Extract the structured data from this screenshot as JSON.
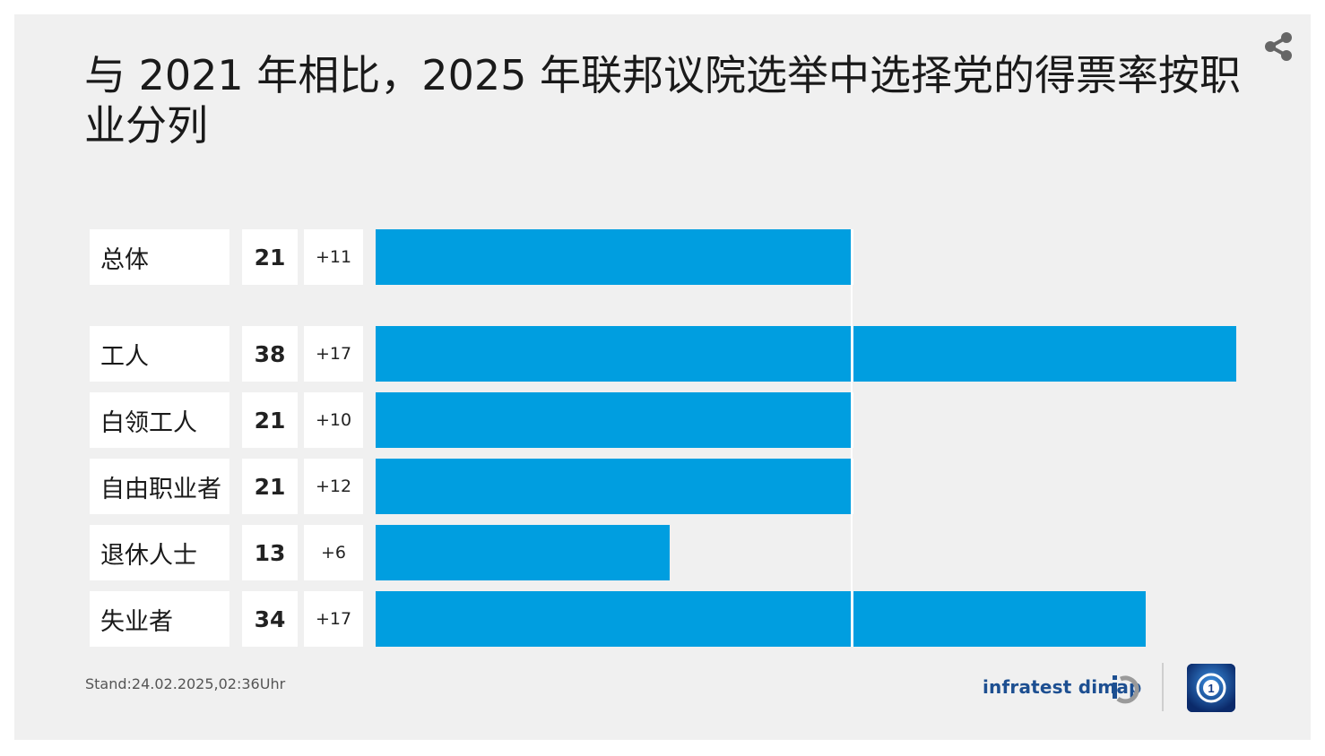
{
  "title": "与 2021 年相比，2025 年联邦议院选举中选择党的得票率按职业分列",
  "share_icon": "share-icon",
  "chart_data": {
    "type": "bar",
    "orientation": "horizontal",
    "title": "与 2021 年相比，2025 年联邦议院选举中选择党的得票率按职业分列",
    "categories": [
      "总体",
      "工人",
      "白领工人",
      "自由职业者",
      "退休人士",
      "失业者"
    ],
    "values": [
      21,
      38,
      21,
      21,
      13,
      34
    ],
    "changes": [
      "+11",
      "+17",
      "+10",
      "+12",
      "+6",
      "+17"
    ],
    "reference_value": 21,
    "xlim": [
      0,
      38
    ],
    "bar_color": "#009ee0",
    "grid": false,
    "legend": "none"
  },
  "footer": {
    "stand": "Stand:24.02.2025,02:36Uhr",
    "source": "infratest dimap",
    "source_logo_icon": "infratest-dimap-logo-icon",
    "brand_logo_icon": "ard-tagesschau-logo-icon"
  },
  "colors": {
    "bar": "#009ee0",
    "background": "#f0f0f0",
    "source_text": "#1d4f91",
    "brand": "#123a86"
  }
}
